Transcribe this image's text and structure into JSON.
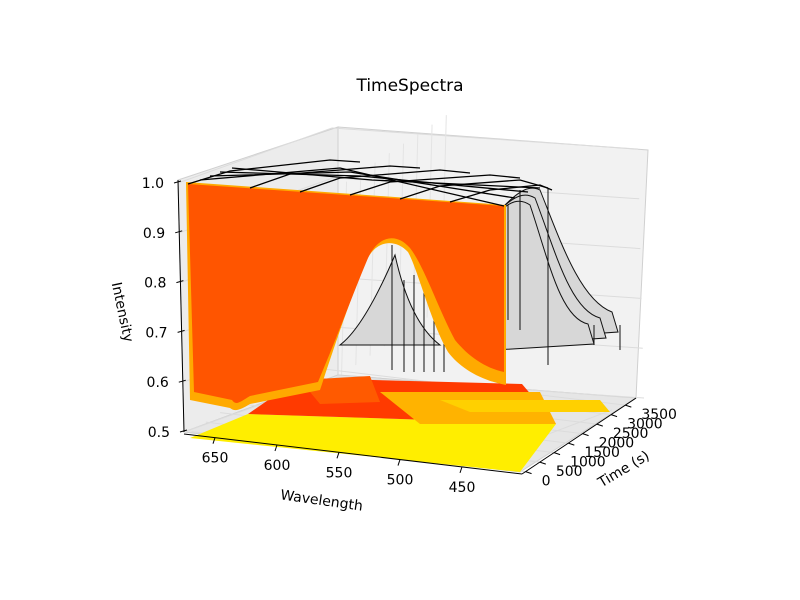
{
  "chart_data": {
    "type": "surface3d",
    "title": "TimeSpectra",
    "xlabel": "Wavelength",
    "ylabel": "Time (s)",
    "zlabel": "Intensity",
    "x_ticks": [
      650,
      600,
      550,
      500,
      450
    ],
    "y_ticks": [
      0,
      500,
      1000,
      1500,
      2000,
      2500,
      3000,
      3500
    ],
    "z_ticks": [
      "0.5",
      "0.6",
      "0.7",
      "0.8",
      "0.9",
      "1.0"
    ],
    "zlim": [
      0.5,
      1.0
    ],
    "grid": true,
    "colormap": "autumn",
    "peak": {
      "wavelength": 555,
      "intensity": 0.9
    }
  },
  "colors": {
    "surface_main": "#ff5500",
    "surface_edge": "#ffaa00",
    "floor_yellow": "#ffee00",
    "floor_red": "#ff3300",
    "wireframe": "#000000",
    "pane": "#f2f2f2"
  }
}
